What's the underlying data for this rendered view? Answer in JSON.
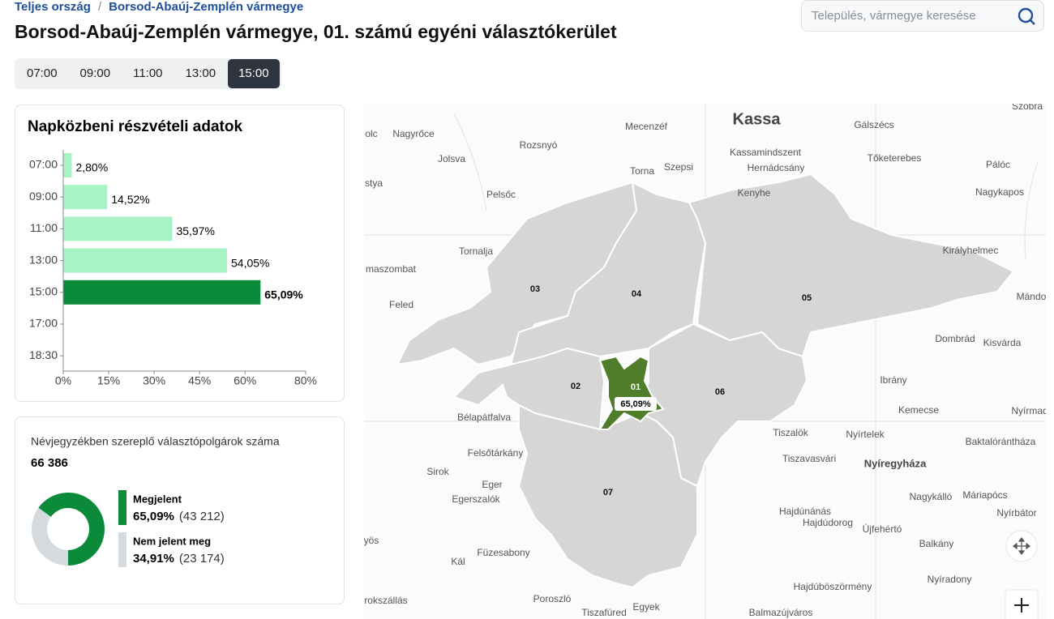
{
  "breadcrumb": {
    "items": [
      "Teljes ország",
      "Borsod-Abaúj-Zemplén vármegye"
    ],
    "separator": "/"
  },
  "search": {
    "placeholder": "Település, vármegye keresése"
  },
  "title": "Borsod-Abaúj-Zemplén vármegye, 01. számú egyéni választókerület",
  "time_tabs": {
    "items": [
      "07:00",
      "09:00",
      "11:00",
      "13:00",
      "15:00"
    ],
    "active": 4
  },
  "chart_data": [
    {
      "type": "bar",
      "orientation": "horizontal",
      "title": "Napközbeni részvételi adatok",
      "categories": [
        "07:00",
        "09:00",
        "11:00",
        "13:00",
        "15:00",
        "17:00",
        "18:30"
      ],
      "values": [
        2.8,
        14.52,
        35.97,
        54.05,
        65.09,
        null,
        null
      ],
      "value_labels": [
        "2,80%",
        "14,52%",
        "35,97%",
        "54,05%",
        "65,09%",
        null,
        null
      ],
      "xlim": [
        0,
        80
      ],
      "xticks": [
        {
          "value": 0,
          "label": "0%"
        },
        {
          "value": 15,
          "label": "15%"
        },
        {
          "value": 30,
          "label": "30%"
        },
        {
          "value": 45,
          "label": "45%"
        },
        {
          "value": 60,
          "label": "60%"
        },
        {
          "value": 80,
          "label": "80%"
        }
      ],
      "color": "#a9f4c6",
      "highlight_color": "#0b8a3a",
      "highlight_index": 4
    },
    {
      "type": "donut",
      "title": "Névjegyzékben szereplő választópolgárok száma",
      "subtitle": "66 386",
      "categories": [
        "Megjelent",
        "Nem jelent meg"
      ],
      "values": [
        65.09,
        34.91
      ],
      "value_labels": [
        "65,09%",
        "34,91%"
      ],
      "count_labels": [
        "(43 212)",
        "(23 174)"
      ],
      "colors": [
        "#0b8a3a",
        "#d4dadd"
      ]
    }
  ],
  "map": {
    "districts": [
      "01",
      "02",
      "03",
      "04",
      "05",
      "06",
      "07"
    ],
    "highlight_label": "65,09%",
    "places": [
      "Kassa",
      "Mecenzéf",
      "Gálszécs",
      "Nagyrőce",
      "Rozsnyó",
      "Kassamindszent",
      "Jolsva",
      "Tőketerebes",
      "Torna",
      "Szepsi",
      "Hernádcsány",
      "Pálóc",
      "Pelsőc",
      "Kenyhe",
      "Nagykapos",
      "Tornalja",
      "Királyhelmec",
      "Feled",
      "Dombrád",
      "Kisvárda",
      "Ibrány",
      "Bélapátfalva",
      "Kemecse",
      "Nyírtelek",
      "Baktalórántháza",
      "Tiszalök",
      "Felsőtárkány",
      "Tiszavasvári",
      "Nyíregyháza",
      "Sirok",
      "Eger",
      "Egerszalók",
      "Nagykálló",
      "Máriapócs",
      "Hajdúnánás",
      "Nyírbátor",
      "Hajdúdorog",
      "Újfehértó",
      "Füzesabony",
      "Kál",
      "Balkány",
      "Nyíradony",
      "Hajdúböszörmény",
      "Poroszló",
      "Egyek",
      "Tiszafüred",
      "Balmazújváros",
      "olc",
      "stya",
      "maszombat",
      "yös",
      "rokszállás",
      "Mándo",
      "Nyírmad",
      "Szobra"
    ]
  }
}
